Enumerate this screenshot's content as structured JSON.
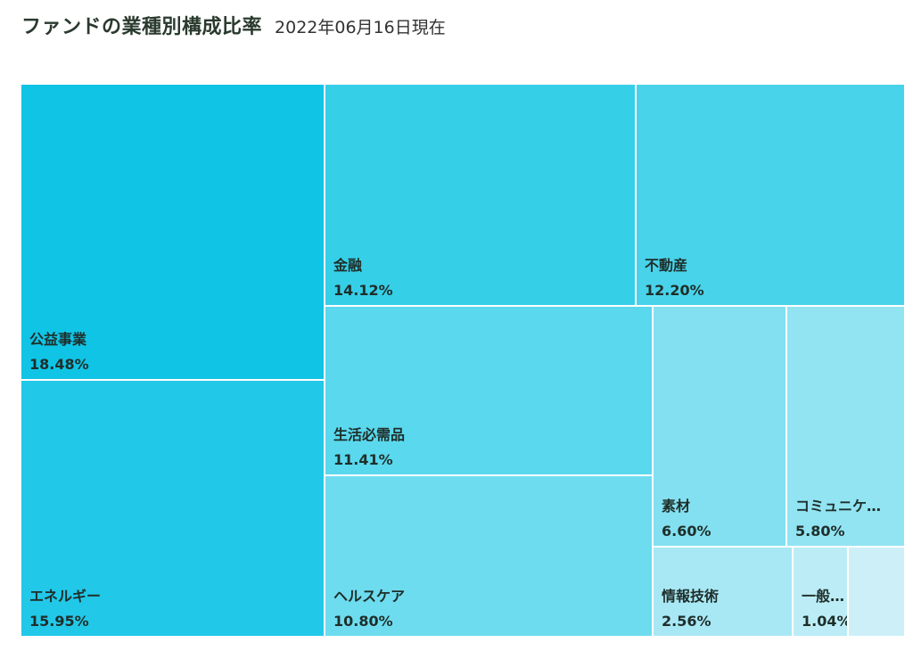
{
  "header": {
    "title": "ファンドの業種別構成比率",
    "date": "2022年06月16日現在"
  },
  "chart_data": {
    "type": "treemap",
    "unit": "%",
    "items": [
      {
        "name": "公益事業",
        "display": "公益事業",
        "value": 18.48,
        "value_label": "18.48%",
        "color": "#10c4e6"
      },
      {
        "name": "エネルギー",
        "display": "エネルギー",
        "value": 15.95,
        "value_label": "15.95%",
        "color": "#22c8e8"
      },
      {
        "name": "金融",
        "display": "金融",
        "value": 14.12,
        "value_label": "14.12%",
        "color": "#36cfe8"
      },
      {
        "name": "不動産",
        "display": "不動産",
        "value": 12.2,
        "value_label": "12.20%",
        "color": "#48d3ea"
      },
      {
        "name": "生活必需品",
        "display": "生活必需品",
        "value": 11.41,
        "value_label": "11.41%",
        "color": "#5ad8ed"
      },
      {
        "name": "ヘルスケア",
        "display": "ヘルスケア",
        "value": 10.8,
        "value_label": "10.80%",
        "color": "#6edcef"
      },
      {
        "name": "素材",
        "display": "素材",
        "value": 6.6,
        "value_label": "6.60%",
        "color": "#82e0f1"
      },
      {
        "name": "コミュニケ…",
        "display": "コミュニケ…",
        "value": 5.8,
        "value_label": "5.80%",
        "color": "#92e4f3"
      },
      {
        "name": "情報技術",
        "display": "情報技術",
        "value": 2.56,
        "value_label": "2.56%",
        "color": "#a8e8f5"
      },
      {
        "name": "一般…",
        "display": "一般…",
        "value": 1.04,
        "value_label": "1.04%",
        "color": "#bcedf7"
      },
      {
        "name": "",
        "display": "",
        "value": 0.6,
        "value_label": "",
        "color": "#cdf0f8"
      }
    ]
  }
}
